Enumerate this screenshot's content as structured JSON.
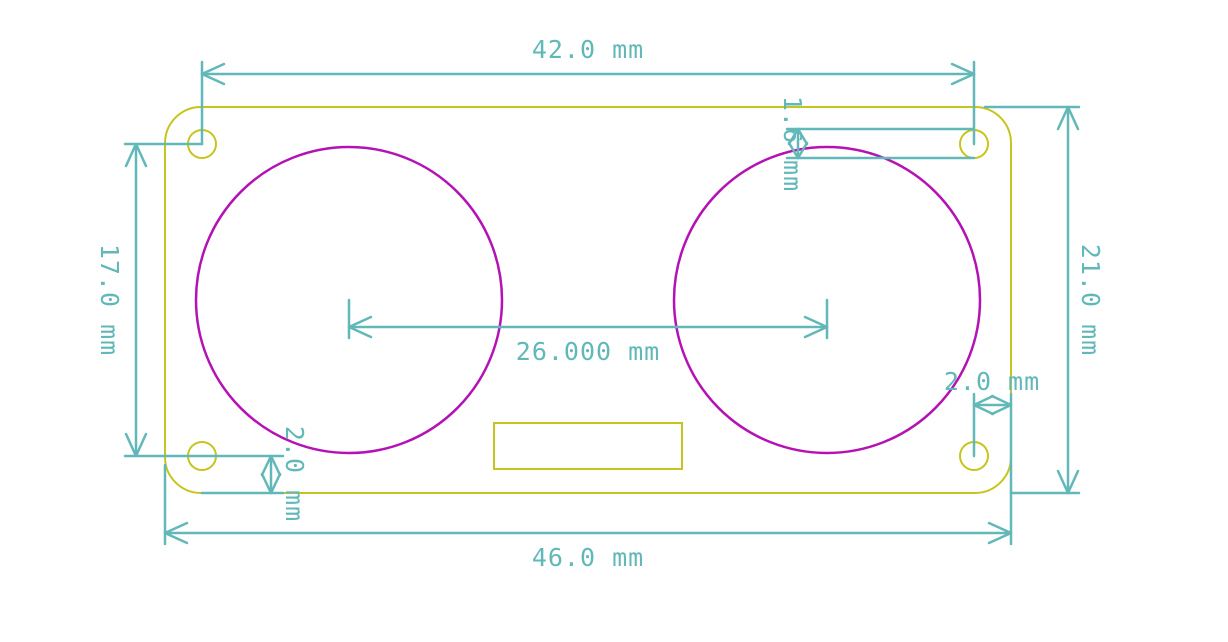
{
  "colors": {
    "dimension": "#62b8b8",
    "board_outline": "#c8c41e",
    "sensor_outline": "#b412b4",
    "background": "#ffffff"
  },
  "dimensions": {
    "hole_spacing_x": "42.0 mm",
    "board_width": "46.0 mm",
    "board_height": "21.0 mm",
    "hole_spacing_y": "17.0 mm",
    "sensor_spacing": "26.000 mm",
    "top_hole_offset": "1.6 mm",
    "right_hole_offset": "2.0 mm",
    "bottom_hole_offset": "2.0 mm"
  }
}
